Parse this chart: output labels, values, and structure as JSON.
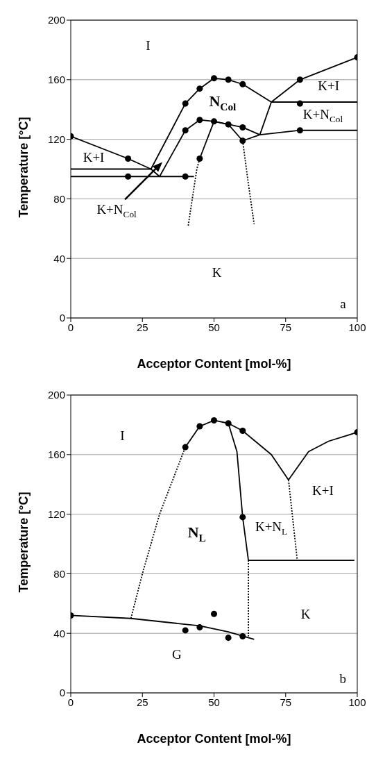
{
  "chart_data": [
    {
      "type": "line",
      "xlabel": "Acceptor Content [mol-%]",
      "ylabel": "Temperature [°C]",
      "xlim": [
        0,
        100
      ],
      "xticks": [
        0,
        25,
        50,
        75,
        100
      ],
      "ylim": [
        0,
        200
      ],
      "yticks": [
        0,
        40,
        80,
        120,
        160,
        200
      ],
      "grid": "y",
      "series": [
        {
          "type": "scatter",
          "color": "#000000",
          "marker": "circle",
          "x": [
            0,
            20,
            20,
            40,
            40,
            40,
            45,
            45,
            45,
            50,
            50,
            55,
            55,
            60,
            60,
            60,
            80,
            80,
            80,
            100
          ],
          "values": [
            122,
            107,
            95,
            95,
            144,
            126,
            154,
            133,
            107,
            161,
            132,
            160,
            130,
            157,
            128,
            119,
            160,
            144,
            126,
            175
          ]
        },
        {
          "color": "#000000",
          "line_style": "solid",
          "marker": "none",
          "x": [
            0,
            20,
            28,
            31
          ],
          "values": [
            122,
            107,
            100,
            95
          ]
        },
        {
          "color": "#000000",
          "line_style": "solid",
          "marker": "none",
          "x": [
            0,
            28
          ],
          "values": [
            100,
            100
          ]
        },
        {
          "color": "#000000",
          "line_style": "solid",
          "marker": "none",
          "x": [
            0,
            43
          ],
          "values": [
            95,
            95
          ]
        },
        {
          "color": "#000000",
          "line_style": "solid",
          "marker": "none",
          "x": [
            28,
            40,
            45,
            50,
            55,
            60,
            70
          ],
          "values": [
            100,
            144,
            154,
            161,
            160,
            157,
            145
          ]
        },
        {
          "color": "#000000",
          "line_style": "solid",
          "marker": "none",
          "x": [
            31,
            40,
            45,
            50,
            55,
            60,
            66
          ],
          "values": [
            95,
            126,
            133,
            132,
            130,
            128,
            123
          ]
        },
        {
          "color": "#000000",
          "line_style": "solid",
          "marker": "none",
          "x": [
            45,
            50,
            55,
            60
          ],
          "values": [
            107,
            132,
            130,
            119
          ]
        },
        {
          "color": "#000000",
          "line_style": "solid",
          "marker": "none",
          "x": [
            60,
            66,
            80,
            100
          ],
          "values": [
            119,
            123,
            126,
            126
          ]
        },
        {
          "color": "#000000",
          "line_style": "solid",
          "marker": "none",
          "x": [
            66,
            70,
            80,
            100
          ],
          "values": [
            123,
            145,
            160,
            175
          ]
        },
        {
          "color": "#000000",
          "line_style": "solid",
          "marker": "none",
          "x": [
            70,
            100
          ],
          "values": [
            145,
            145
          ]
        },
        {
          "color": "#000000",
          "line_style": "dotted",
          "marker": "none",
          "x": [
            41,
            44,
            45
          ],
          "values": [
            62,
            100,
            107
          ]
        },
        {
          "color": "#000000",
          "line_style": "dotted",
          "marker": "none",
          "x": [
            60,
            62,
            64
          ],
          "values": [
            119,
            90,
            63
          ]
        }
      ],
      "annotations": [
        "I",
        "N$_{Col}$",
        "K+I",
        "K+N$_{Col}$",
        "K+I",
        "K+N$_{Col}$",
        "K",
        "a"
      ]
    },
    {
      "type": "line",
      "xlabel": "Acceptor Content [mol-%]",
      "ylabel": "Temperature [°C]",
      "xlim": [
        0,
        100
      ],
      "xticks": [
        0,
        25,
        50,
        75,
        100
      ],
      "ylim": [
        0,
        200
      ],
      "yticks": [
        0,
        40,
        80,
        120,
        160,
        200
      ],
      "grid": "y",
      "series": [
        {
          "type": "scatter",
          "color": "#000000",
          "marker": "circle",
          "x": [
            0,
            40,
            45,
            50,
            55,
            60,
            100,
            60,
            40,
            45,
            50,
            55,
            60
          ],
          "values": [
            52,
            165,
            179,
            183,
            181,
            176,
            175,
            118,
            42,
            44,
            53,
            37,
            38
          ]
        },
        {
          "color": "#000000",
          "line_style": "solid",
          "marker": "none",
          "x": [
            0,
            21,
            45,
            55,
            64
          ],
          "values": [
            52,
            50,
            45,
            41,
            36
          ]
        },
        {
          "color": "#000000",
          "line_style": "dotted",
          "marker": "none",
          "x": [
            21,
            25,
            31,
            39,
            40
          ],
          "values": [
            50,
            80,
            120,
            160,
            165
          ]
        },
        {
          "color": "#000000",
          "line_style": "solid",
          "marker": "none",
          "x": [
            40,
            45,
            50,
            55,
            60,
            70,
            76
          ],
          "values": [
            165,
            179,
            183,
            181,
            176,
            160,
            143
          ]
        },
        {
          "color": "#000000",
          "line_style": "solid",
          "marker": "none",
          "x": [
            76,
            83,
            90,
            100
          ],
          "values": [
            143,
            162,
            169,
            175
          ]
        },
        {
          "color": "#000000",
          "line_style": "solid",
          "marker": "none",
          "x": [
            55,
            58,
            60,
            62
          ],
          "values": [
            181,
            162,
            118,
            89
          ]
        },
        {
          "color": "#000000",
          "line_style": "solid",
          "marker": "none",
          "x": [
            62,
            99
          ],
          "values": [
            89,
            89
          ]
        },
        {
          "color": "#000000",
          "line_style": "dotted",
          "marker": "none",
          "x": [
            62,
            62
          ],
          "values": [
            89,
            38
          ]
        },
        {
          "color": "#000000",
          "line_style": "dotted",
          "marker": "none",
          "x": [
            76,
            79
          ],
          "values": [
            143,
            90
          ]
        }
      ],
      "annotations": [
        "I",
        "N$_{L}$",
        "K+N$_{L}$",
        "K+I",
        "K",
        "G",
        "b"
      ]
    }
  ]
}
